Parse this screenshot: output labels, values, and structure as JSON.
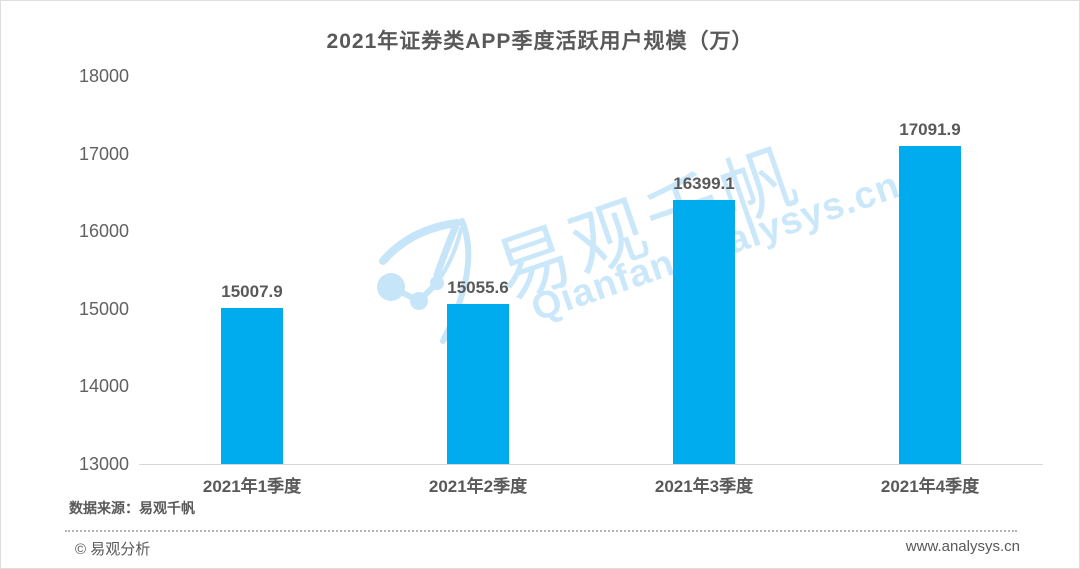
{
  "chart_data": {
    "type": "bar",
    "title": "2021年证券类APP季度活跃用户规模（万）",
    "categories": [
      "2021年1季度",
      "2021年2季度",
      "2021年3季度",
      "2021年4季度"
    ],
    "values": [
      15007.9,
      15055.6,
      16399.1,
      17091.9
    ],
    "value_labels": [
      "15007.9",
      "15055.6",
      "16399.1",
      "17091.9"
    ],
    "xlabel": "",
    "ylabel": "",
    "ylim": [
      13000,
      18000
    ],
    "yticks": [
      13000,
      14000,
      15000,
      16000,
      17000,
      18000
    ],
    "grid": false,
    "legend_position": "none",
    "bar_color": "#00ACEE"
  },
  "source_note": "数据来源：易观千帆",
  "footer": {
    "copyright": "© 易观分析",
    "website": "www.analysys.cn"
  },
  "watermark": {
    "logo_icon": "qianfan-crane-logo",
    "brand_cn": "易观千帆",
    "brand_en": "Qianfan.analysys.cn",
    "color": "#CBE8FA"
  },
  "colors": {
    "bar": "#00ACEE",
    "text": "#595959",
    "axis_line": "#D8D8D8",
    "watermark": "#CBE8FA"
  }
}
